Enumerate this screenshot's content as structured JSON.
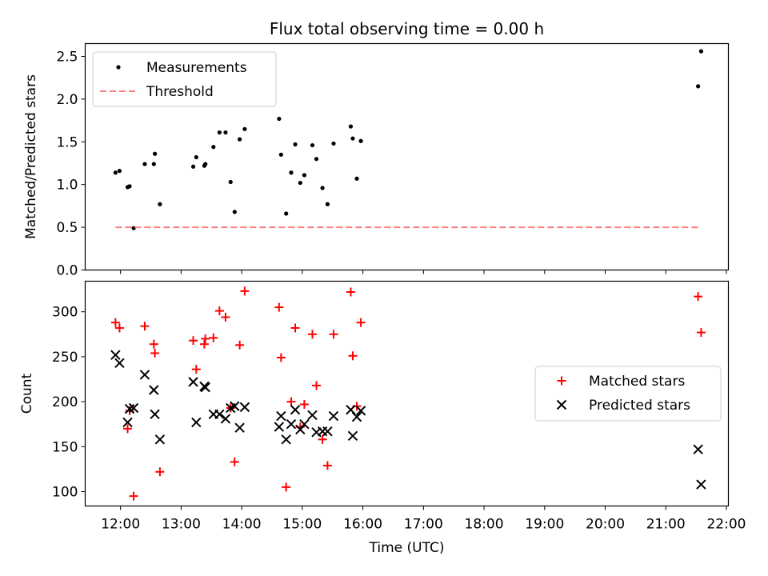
{
  "chart_data": [
    {
      "type": "scatter",
      "title": "Flux total observing time = 0.00 h",
      "xlabel": "",
      "ylabel": "Matched/Predicted stars",
      "ylim": [
        0,
        2.65
      ],
      "yticks": [
        0,
        0.5,
        1,
        1.5,
        2,
        2.5
      ],
      "ytick_labels": [
        "0.0",
        "0.5",
        "1.0",
        "1.5",
        "2.0",
        "2.5"
      ],
      "legend_position": "upper-left",
      "series": [
        {
          "name": "Measurements",
          "kind": "dot",
          "color": "#000000",
          "x": [
            "11:55",
            "11:59",
            "12:07",
            "12:09",
            "12:13",
            "12:24",
            "12:33",
            "12:34",
            "12:39",
            "13:12",
            "13:15",
            "13:23",
            "13:24",
            "13:32",
            "13:38",
            "13:44",
            "13:49",
            "13:53",
            "13:58",
            "14:03",
            "14:37",
            "14:39",
            "14:44",
            "14:49",
            "14:53",
            "14:58",
            "15:02",
            "15:10",
            "15:14",
            "15:20",
            "15:25",
            "15:31",
            "15:48",
            "15:50",
            "15:54",
            "15:58"
          ],
          "y": [
            1.14,
            1.16,
            0.97,
            0.98,
            0.49,
            1.24,
            1.24,
            1.36,
            0.77,
            1.21,
            1.32,
            1.22,
            1.24,
            1.44,
            1.61,
            1.61,
            1.03,
            0.68,
            1.53,
            1.65,
            1.77,
            1.35,
            0.66,
            1.14,
            1.47,
            1.02,
            1.11,
            1.46,
            1.3,
            0.96,
            0.77,
            1.48,
            1.68,
            1.54,
            1.07,
            1.51
          ]
        },
        {
          "name": "",
          "kind": "dot",
          "color": "#000000",
          "x": [
            "21:32",
            "21:35"
          ],
          "y": [
            2.15,
            2.56
          ]
        },
        {
          "name": "Threshold",
          "kind": "dashed-line",
          "color": "#ff7f7f",
          "x": [
            "11:55",
            "21:35"
          ],
          "y": [
            0.5,
            0.5
          ]
        }
      ]
    },
    {
      "type": "scatter",
      "title": "",
      "xlabel": "Time (UTC)",
      "ylabel": "Count",
      "ylim": [
        84,
        334
      ],
      "yticks": [
        100,
        150,
        200,
        250,
        300
      ],
      "ytick_labels": [
        "100",
        "150",
        "200",
        "250",
        "300"
      ],
      "xlim": [
        "11:25",
        "22:02"
      ],
      "xticks": [
        "12:00",
        "13:00",
        "14:00",
        "15:00",
        "16:00",
        "17:00",
        "18:00",
        "19:00",
        "20:00",
        "21:00",
        "22:00"
      ],
      "legend_position": "center-right",
      "series": [
        {
          "name": "Matched stars",
          "marker": "plus",
          "color": "#ff0000",
          "x": [
            "11:55",
            "11:59",
            "12:07",
            "12:09",
            "12:13",
            "12:24",
            "12:33",
            "12:34",
            "12:39",
            "13:12",
            "13:15",
            "13:23",
            "13:24",
            "13:32",
            "13:38",
            "13:44",
            "13:49",
            "13:53",
            "13:58",
            "14:03",
            "14:37",
            "14:39",
            "14:44",
            "14:49",
            "14:53",
            "14:58",
            "15:02",
            "15:10",
            "15:14",
            "15:20",
            "15:25",
            "15:31",
            "15:48",
            "15:50",
            "15:54",
            "15:58",
            "21:32",
            "21:35"
          ],
          "y": [
            288,
            282,
            170,
            190,
            95,
            284,
            264,
            254,
            122,
            268,
            236,
            264,
            270,
            271,
            301,
            294,
            193,
            133,
            263,
            323,
            305,
            249,
            105,
            200,
            282,
            172,
            197,
            275,
            218,
            158,
            129,
            275,
            322,
            251,
            195,
            288,
            317,
            277
          ]
        },
        {
          "name": "Predicted stars",
          "marker": "x",
          "color": "#000000",
          "x": [
            "11:55",
            "11:59",
            "12:07",
            "12:09",
            "12:13",
            "12:24",
            "12:33",
            "12:34",
            "12:39",
            "13:12",
            "13:15",
            "13:23",
            "13:24",
            "13:32",
            "13:38",
            "13:44",
            "13:49",
            "13:53",
            "13:58",
            "14:03",
            "14:37",
            "14:39",
            "14:44",
            "14:49",
            "14:53",
            "14:58",
            "15:02",
            "15:10",
            "15:14",
            "15:20",
            "15:25",
            "15:31",
            "15:48",
            "15:50",
            "15:54",
            "15:58",
            "21:32",
            "21:35"
          ],
          "y": [
            252,
            243,
            177,
            192,
            193,
            230,
            213,
            186,
            158,
            222,
            177,
            217,
            216,
            186,
            186,
            181,
            193,
            195,
            171,
            194,
            172,
            184,
            158,
            175,
            191,
            169,
            175,
            185,
            166,
            167,
            167,
            184,
            191,
            162,
            183,
            190,
            147,
            108
          ]
        }
      ]
    }
  ]
}
